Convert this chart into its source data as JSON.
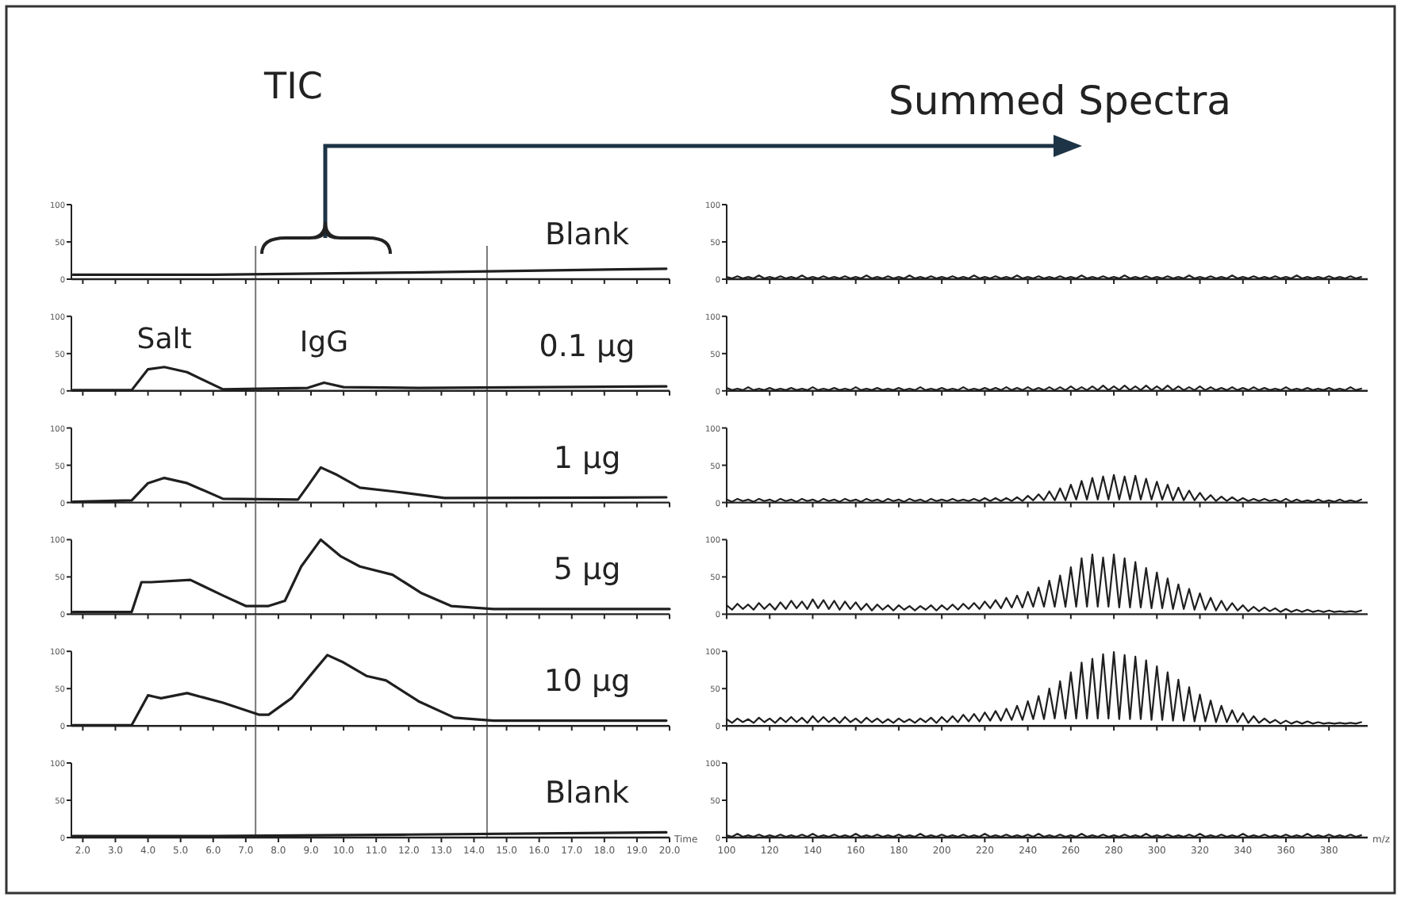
{
  "chart_data": [
    {
      "type": "line",
      "title": "Blank",
      "annotations": [
        "TIC"
      ],
      "color": "#1f1f1f",
      "x": [
        1.7,
        6,
        12,
        19.9
      ],
      "values": [
        6,
        6,
        9,
        14
      ],
      "xlim": [
        1.65,
        20
      ],
      "xticks": [
        {
          "value": 2,
          "label": null
        },
        {
          "value": 3,
          "label": null
        },
        {
          "value": 4,
          "label": null
        },
        {
          "value": 5,
          "label": null
        },
        {
          "value": 6,
          "label": null
        },
        {
          "value": 7,
          "label": null
        },
        {
          "value": 8,
          "label": null
        },
        {
          "value": 9,
          "label": null
        },
        {
          "value": 10,
          "label": null
        },
        {
          "value": 11,
          "label": null
        },
        {
          "value": 12,
          "label": null
        },
        {
          "value": 13,
          "label": null
        },
        {
          "value": 14,
          "label": null
        },
        {
          "value": 15,
          "label": null
        },
        {
          "value": 16,
          "label": null
        },
        {
          "value": 17,
          "label": null
        },
        {
          "value": 18,
          "label": null
        },
        {
          "value": 19,
          "label": null
        },
        {
          "value": 20,
          "label": null
        }
      ],
      "ylim": [
        0,
        100
      ],
      "yticks": [
        0,
        50,
        100
      ],
      "tick_labels": "y",
      "ref_lines": [
        {
          "axis": "x",
          "value": 7.3
        },
        {
          "axis": "x",
          "value": 14.4
        }
      ]
    },
    {
      "type": "line",
      "annotations": [
        "Summed Spectra"
      ],
      "color": "#1f1f1f",
      "x": [
        100,
        102.5,
        105,
        107.5,
        110,
        112.5,
        115,
        117.5,
        120,
        122.5,
        125,
        127.5,
        130,
        132.5,
        135,
        137.5,
        140,
        142.5,
        145,
        147.5,
        150,
        152.5,
        155,
        157.5,
        160,
        162.5,
        165,
        167.5,
        170,
        172.5,
        175,
        177.5,
        180,
        182.5,
        185,
        187.5,
        190,
        192.5,
        195,
        197.5,
        200,
        202.5,
        205,
        207.5,
        210,
        212.5,
        215,
        217.5,
        220,
        222.5,
        225,
        227.5,
        230,
        232.5,
        235,
        237.5,
        240,
        242.5,
        245,
        247.5,
        250,
        252.5,
        255,
        257.5,
        260,
        262.5,
        265,
        267.5,
        270,
        272.5,
        275,
        277.5,
        280,
        282.5,
        285,
        287.5,
        290,
        292.5,
        295,
        297.5,
        300,
        302.5,
        305,
        307.5,
        310,
        312.5,
        315,
        317.5,
        320,
        322.5,
        325,
        327.5,
        330,
        332.5,
        335,
        337.5,
        340,
        342.5,
        345,
        347.5,
        350,
        352.5,
        355,
        357.5,
        360,
        362.5,
        365,
        367.5,
        370,
        372.5,
        375,
        377.5,
        380,
        382.5,
        385,
        387.5,
        390,
        392.5,
        395
      ],
      "values": [
        3,
        1,
        4,
        1,
        3,
        1,
        5,
        1,
        3,
        1,
        4,
        1,
        3,
        1,
        5,
        1,
        3,
        1,
        4,
        1,
        3,
        1,
        4,
        1,
        3,
        1,
        5,
        1,
        3,
        1,
        4,
        1,
        3,
        1,
        5,
        1,
        3,
        1,
        4,
        1,
        3,
        1,
        4,
        1,
        3,
        1,
        5,
        1,
        3,
        1,
        4,
        1,
        3,
        1,
        5,
        1,
        3,
        1,
        4,
        1,
        3,
        1,
        4,
        1,
        3,
        1,
        5,
        1,
        3,
        1,
        4,
        1,
        3,
        1,
        5,
        1,
        3,
        1,
        4,
        1,
        3,
        1,
        4,
        1,
        3,
        1,
        5,
        1,
        3,
        1,
        4,
        1,
        3,
        1,
        5,
        1,
        3,
        1,
        4,
        1,
        3,
        1,
        4,
        1,
        3,
        1,
        5,
        1,
        3,
        1,
        3,
        1,
        4,
        1,
        3,
        1,
        4,
        1,
        3
      ],
      "xlim": [
        100,
        398
      ],
      "xticks": [
        100,
        120,
        140,
        160,
        180,
        200,
        220,
        240,
        260,
        280,
        300,
        320,
        340,
        360,
        380
      ],
      "ylim": [
        0,
        100
      ],
      "yticks": [
        0,
        50,
        100
      ],
      "tick_labels": "y"
    },
    {
      "type": "line",
      "title": "0.1 μg",
      "annotations": [
        {
          "text": "Salt",
          "x": 4.5,
          "y": 32
        },
        {
          "text": "IgG",
          "x": 9.4,
          "y": 11
        }
      ],
      "color": "#1f1f1f",
      "x": [
        1.7,
        3.5,
        4.0,
        4.5,
        5.2,
        6.3,
        8.9,
        9.4,
        10.0,
        12.3,
        19.9
      ],
      "values": [
        1,
        1,
        29,
        32,
        25,
        2,
        4,
        11,
        5,
        4,
        6
      ],
      "xlim": [
        1.65,
        20
      ],
      "xticks": [
        {
          "value": 2,
          "label": null
        },
        {
          "value": 3,
          "label": null
        },
        {
          "value": 4,
          "label": null
        },
        {
          "value": 5,
          "label": null
        },
        {
          "value": 6,
          "label": null
        },
        {
          "value": 7,
          "label": null
        },
        {
          "value": 8,
          "label": null
        },
        {
          "value": 9,
          "label": null
        },
        {
          "value": 10,
          "label": null
        },
        {
          "value": 11,
          "label": null
        },
        {
          "value": 12,
          "label": null
        },
        {
          "value": 13,
          "label": null
        },
        {
          "value": 14,
          "label": null
        },
        {
          "value": 15,
          "label": null
        },
        {
          "value": 16,
          "label": null
        },
        {
          "value": 17,
          "label": null
        },
        {
          "value": 18,
          "label": null
        },
        {
          "value": 19,
          "label": null
        },
        {
          "value": 20,
          "label": null
        }
      ],
      "ylim": [
        0,
        100
      ],
      "yticks": [
        0,
        50,
        100
      ],
      "tick_labels": "y",
      "ref_lines": [
        {
          "axis": "x",
          "value": 7.3
        },
        {
          "axis": "x",
          "value": 14.4
        }
      ]
    },
    {
      "type": "line",
      "color": "#1f1f1f",
      "x": [
        100,
        102.5,
        105,
        107.5,
        110,
        112.5,
        115,
        117.5,
        120,
        122.5,
        125,
        127.5,
        130,
        132.5,
        135,
        137.5,
        140,
        142.5,
        145,
        147.5,
        150,
        152.5,
        155,
        157.5,
        160,
        162.5,
        165,
        167.5,
        170,
        172.5,
        175,
        177.5,
        180,
        182.5,
        185,
        187.5,
        190,
        192.5,
        195,
        197.5,
        200,
        202.5,
        205,
        207.5,
        210,
        212.5,
        215,
        217.5,
        220,
        222.5,
        225,
        227.5,
        230,
        232.5,
        235,
        237.5,
        240,
        242.5,
        245,
        247.5,
        250,
        252.5,
        255,
        257.5,
        260,
        262.5,
        265,
        267.5,
        270,
        272.5,
        275,
        277.5,
        280,
        282.5,
        285,
        287.5,
        290,
        292.5,
        295,
        297.5,
        300,
        302.5,
        305,
        307.5,
        310,
        312.5,
        315,
        317.5,
        320,
        322.5,
        325,
        327.5,
        330,
        332.5,
        335,
        337.5,
        340,
        342.5,
        345,
        347.5,
        350,
        352.5,
        355,
        357.5,
        360,
        362.5,
        365,
        367.5,
        370,
        372.5,
        375,
        377.5,
        380,
        382.5,
        385,
        387.5,
        390,
        392.5,
        395
      ],
      "values": [
        4,
        1,
        3,
        1,
        5,
        1,
        3,
        1,
        4,
        1,
        3,
        1,
        4,
        1,
        3,
        1,
        5,
        1,
        3,
        1,
        4,
        1,
        3,
        1,
        5,
        1,
        3,
        1,
        4,
        1,
        3,
        1,
        4,
        1,
        3,
        1,
        5,
        1,
        3,
        1,
        4,
        1,
        3,
        1,
        5,
        1,
        3,
        1,
        4,
        1,
        4,
        1,
        5,
        1,
        4,
        1,
        5,
        1,
        4,
        1,
        5,
        1,
        5,
        1,
        6,
        1,
        5,
        1,
        6,
        1,
        7,
        1,
        6,
        1,
        7,
        1,
        6,
        1,
        7,
        1,
        6,
        1,
        7,
        1,
        6,
        1,
        5,
        1,
        6,
        1,
        5,
        1,
        4,
        1,
        5,
        1,
        4,
        1,
        5,
        1,
        4,
        1,
        3,
        1,
        5,
        1,
        3,
        1,
        4,
        1,
        3,
        1,
        4,
        1,
        3,
        1,
        5,
        1,
        3
      ],
      "xlim": [
        100,
        398
      ],
      "xticks": [
        100,
        120,
        140,
        160,
        180,
        200,
        220,
        240,
        260,
        280,
        300,
        320,
        340,
        360,
        380
      ],
      "ylim": [
        0,
        100
      ],
      "yticks": [
        0,
        50,
        100
      ],
      "tick_labels": "y"
    },
    {
      "type": "line",
      "title": "1 μg",
      "color": "#1f1f1f",
      "x": [
        1.7,
        3.5,
        4.0,
        4.5,
        5.2,
        6.3,
        8.6,
        8.9,
        9.3,
        9.8,
        10.5,
        11.5,
        13.1,
        19.9
      ],
      "values": [
        1,
        3,
        26,
        33,
        26,
        5,
        4,
        22,
        47,
        37,
        20,
        15,
        6,
        7
      ],
      "xlim": [
        1.65,
        20
      ],
      "xticks": [
        {
          "value": 2,
          "label": null
        },
        {
          "value": 3,
          "label": null
        },
        {
          "value": 4,
          "label": null
        },
        {
          "value": 5,
          "label": null
        },
        {
          "value": 6,
          "label": null
        },
        {
          "value": 7,
          "label": null
        },
        {
          "value": 8,
          "label": null
        },
        {
          "value": 9,
          "label": null
        },
        {
          "value": 10,
          "label": null
        },
        {
          "value": 11,
          "label": null
        },
        {
          "value": 12,
          "label": null
        },
        {
          "value": 13,
          "label": null
        },
        {
          "value": 14,
          "label": null
        },
        {
          "value": 15,
          "label": null
        },
        {
          "value": 16,
          "label": null
        },
        {
          "value": 17,
          "label": null
        },
        {
          "value": 18,
          "label": null
        },
        {
          "value": 19,
          "label": null
        },
        {
          "value": 20,
          "label": null
        }
      ],
      "ylim": [
        0,
        100
      ],
      "yticks": [
        0,
        50,
        100
      ],
      "tick_labels": "y",
      "ref_lines": [
        {
          "axis": "x",
          "value": 7.3
        },
        {
          "axis": "x",
          "value": 14.4
        }
      ]
    },
    {
      "type": "line",
      "color": "#1f1f1f",
      "x": [
        100,
        102.5,
        105,
        107.5,
        110,
        112.5,
        115,
        117.5,
        120,
        122.5,
        125,
        127.5,
        130,
        132.5,
        135,
        137.5,
        140,
        142.5,
        145,
        147.5,
        150,
        152.5,
        155,
        157.5,
        160,
        162.5,
        165,
        167.5,
        170,
        172.5,
        175,
        177.5,
        180,
        182.5,
        185,
        187.5,
        190,
        192.5,
        195,
        197.5,
        200,
        202.5,
        205,
        207.5,
        210,
        212.5,
        215,
        217.5,
        220,
        222.5,
        225,
        227.5,
        230,
        232.5,
        235,
        237.5,
        240,
        242.5,
        245,
        247.5,
        250,
        252.5,
        255,
        257.5,
        260,
        262.5,
        265,
        267.5,
        270,
        272.5,
        275,
        277.5,
        280,
        282.5,
        285,
        287.5,
        290,
        292.5,
        295,
        297.5,
        300,
        302.5,
        305,
        307.5,
        310,
        312.5,
        315,
        317.5,
        320,
        322.5,
        325,
        327.5,
        330,
        332.5,
        335,
        337.5,
        340,
        342.5,
        345,
        347.5,
        350,
        352.5,
        355,
        357.5,
        360,
        362.5,
        365,
        367.5,
        370,
        372.5,
        375,
        377.5,
        380,
        382.5,
        385,
        387.5,
        390,
        392.5,
        395
      ],
      "values": [
        4,
        1,
        5,
        2,
        4,
        1,
        5,
        2,
        4,
        1,
        5,
        2,
        4,
        1,
        5,
        2,
        4,
        1,
        5,
        2,
        4,
        1,
        5,
        2,
        4,
        1,
        5,
        2,
        4,
        1,
        5,
        2,
        4,
        1,
        5,
        2,
        4,
        1,
        5,
        2,
        4,
        2,
        5,
        2,
        4,
        2,
        5,
        2,
        6,
        2,
        6,
        2,
        6,
        2,
        7,
        2,
        9,
        3,
        11,
        3,
        15,
        3,
        19,
        3,
        24,
        4,
        29,
        4,
        33,
        4,
        35,
        4,
        37,
        4,
        35,
        4,
        36,
        4,
        32,
        4,
        28,
        4,
        24,
        3,
        20,
        3,
        16,
        3,
        13,
        3,
        10,
        2,
        8,
        2,
        7,
        2,
        6,
        2,
        5,
        2,
        5,
        2,
        4,
        1,
        5,
        1,
        4,
        1,
        3,
        1,
        4,
        1,
        3,
        1,
        4,
        1,
        3,
        1,
        4
      ],
      "xlim": [
        100,
        398
      ],
      "xticks": [
        100,
        120,
        140,
        160,
        180,
        200,
        220,
        240,
        260,
        280,
        300,
        320,
        340,
        360,
        380
      ],
      "ylim": [
        0,
        100
      ],
      "yticks": [
        0,
        50,
        100
      ],
      "tick_labels": "y"
    },
    {
      "type": "line",
      "title": "5 μg",
      "color": "#1f1f1f",
      "x": [
        1.7,
        3.5,
        3.8,
        4.1,
        5.3,
        6.3,
        7.0,
        7.7,
        8.2,
        8.7,
        9.3,
        9.9,
        10.5,
        11.5,
        12.4,
        13.3,
        14.6,
        20.0
      ],
      "values": [
        3,
        3,
        43,
        43,
        46,
        25,
        11,
        11,
        18,
        64,
        100,
        78,
        64,
        53,
        28,
        11,
        7,
        7
      ],
      "xlim": [
        1.65,
        20
      ],
      "xticks": [
        {
          "value": 2,
          "label": null
        },
        {
          "value": 3,
          "label": null
        },
        {
          "value": 4,
          "label": null
        },
        {
          "value": 5,
          "label": null
        },
        {
          "value": 6,
          "label": null
        },
        {
          "value": 7,
          "label": null
        },
        {
          "value": 8,
          "label": null
        },
        {
          "value": 9,
          "label": null
        },
        {
          "value": 10,
          "label": null
        },
        {
          "value": 11,
          "label": null
        },
        {
          "value": 12,
          "label": null
        },
        {
          "value": 13,
          "label": null
        },
        {
          "value": 14,
          "label": null
        },
        {
          "value": 15,
          "label": null
        },
        {
          "value": 16,
          "label": null
        },
        {
          "value": 17,
          "label": null
        },
        {
          "value": 18,
          "label": null
        },
        {
          "value": 19,
          "label": null
        },
        {
          "value": 20,
          "label": null
        }
      ],
      "ylim": [
        0,
        100
      ],
      "yticks": [
        0,
        50,
        100
      ],
      "tick_labels": "y",
      "ref_lines": [
        {
          "axis": "x",
          "value": 7.3
        },
        {
          "axis": "x",
          "value": 14.4
        }
      ]
    },
    {
      "type": "line",
      "color": "#1f1f1f",
      "x": [
        100,
        102.5,
        105,
        107.5,
        110,
        112.5,
        115,
        117.5,
        120,
        122.5,
        125,
        127.5,
        130,
        132.5,
        135,
        137.5,
        140,
        142.5,
        145,
        147.5,
        150,
        152.5,
        155,
        157.5,
        160,
        162.5,
        165,
        167.5,
        170,
        172.5,
        175,
        177.5,
        180,
        182.5,
        185,
        187.5,
        190,
        192.5,
        195,
        197.5,
        200,
        202.5,
        205,
        207.5,
        210,
        212.5,
        215,
        217.5,
        220,
        222.5,
        225,
        227.5,
        230,
        232.5,
        235,
        237.5,
        240,
        242.5,
        245,
        247.5,
        250,
        252.5,
        255,
        257.5,
        260,
        262.5,
        265,
        267.5,
        270,
        272.5,
        275,
        277.5,
        280,
        282.5,
        285,
        287.5,
        290,
        292.5,
        295,
        297.5,
        300,
        302.5,
        305,
        307.5,
        310,
        312.5,
        315,
        317.5,
        320,
        322.5,
        325,
        327.5,
        330,
        332.5,
        335,
        337.5,
        340,
        342.5,
        345,
        347.5,
        350,
        352.5,
        355,
        357.5,
        360,
        362.5,
        365,
        367.5,
        370,
        372.5,
        375,
        377.5,
        380,
        382.5,
        385,
        387.5,
        390,
        392.5,
        395
      ],
      "values": [
        12,
        6,
        14,
        7,
        13,
        6,
        15,
        7,
        14,
        6,
        16,
        7,
        18,
        8,
        17,
        7,
        20,
        8,
        19,
        7,
        18,
        6,
        17,
        7,
        16,
        6,
        14,
        5,
        13,
        6,
        12,
        5,
        12,
        6,
        11,
        5,
        11,
        6,
        12,
        5,
        12,
        6,
        13,
        6,
        14,
        7,
        15,
        7,
        17,
        8,
        19,
        8,
        22,
        9,
        25,
        9,
        30,
        10,
        36,
        10,
        45,
        10,
        52,
        10,
        63,
        10,
        75,
        10,
        80,
        10,
        76,
        10,
        80,
        9,
        75,
        9,
        70,
        9,
        62,
        8,
        56,
        8,
        48,
        7,
        40,
        7,
        34,
        6,
        28,
        6,
        22,
        5,
        18,
        5,
        15,
        5,
        12,
        4,
        10,
        4,
        9,
        4,
        8,
        3,
        7,
        3,
        6,
        3,
        6,
        3,
        5,
        3,
        5,
        3,
        4,
        3,
        4,
        3,
        5
      ],
      "xlim": [
        100,
        398
      ],
      "xticks": [
        100,
        120,
        140,
        160,
        180,
        200,
        220,
        240,
        260,
        280,
        300,
        320,
        340,
        360,
        380
      ],
      "ylim": [
        0,
        100
      ],
      "yticks": [
        0,
        50,
        100
      ],
      "tick_labels": "y"
    },
    {
      "type": "line",
      "title": "10 μg",
      "color": "#1f1f1f",
      "x": [
        1.7,
        3.5,
        4.0,
        4.2,
        4.4,
        5.2,
        6.3,
        7.4,
        7.7,
        8.4,
        9.1,
        9.5,
        10.0,
        10.7,
        11.3,
        12.3,
        13.4,
        14.6,
        19.9
      ],
      "values": [
        1,
        1,
        41,
        39,
        37,
        44,
        31,
        15,
        15,
        37,
        74,
        95,
        85,
        67,
        61,
        33,
        11,
        7,
        7
      ],
      "xlim": [
        1.65,
        20
      ],
      "xticks": [
        {
          "value": 2,
          "label": null
        },
        {
          "value": 3,
          "label": null
        },
        {
          "value": 4,
          "label": null
        },
        {
          "value": 5,
          "label": null
        },
        {
          "value": 6,
          "label": null
        },
        {
          "value": 7,
          "label": null
        },
        {
          "value": 8,
          "label": null
        },
        {
          "value": 9,
          "label": null
        },
        {
          "value": 10,
          "label": null
        },
        {
          "value": 11,
          "label": null
        },
        {
          "value": 12,
          "label": null
        },
        {
          "value": 13,
          "label": null
        },
        {
          "value": 14,
          "label": null
        },
        {
          "value": 15,
          "label": null
        },
        {
          "value": 16,
          "label": null
        },
        {
          "value": 17,
          "label": null
        },
        {
          "value": 18,
          "label": null
        },
        {
          "value": 19,
          "label": null
        },
        {
          "value": 20,
          "label": null
        }
      ],
      "ylim": [
        0,
        100
      ],
      "yticks": [
        0,
        50,
        100
      ],
      "tick_labels": "y",
      "ref_lines": [
        {
          "axis": "x",
          "value": 7.3
        },
        {
          "axis": "x",
          "value": 14.4
        }
      ]
    },
    {
      "type": "line",
      "color": "#1f1f1f",
      "x": [
        100,
        102.5,
        105,
        107.5,
        110,
        112.5,
        115,
        117.5,
        120,
        122.5,
        125,
        127.5,
        130,
        132.5,
        135,
        137.5,
        140,
        142.5,
        145,
        147.5,
        150,
        152.5,
        155,
        157.5,
        160,
        162.5,
        165,
        167.5,
        170,
        172.5,
        175,
        177.5,
        180,
        182.5,
        185,
        187.5,
        190,
        192.5,
        195,
        197.5,
        200,
        202.5,
        205,
        207.5,
        210,
        212.5,
        215,
        217.5,
        220,
        222.5,
        225,
        227.5,
        230,
        232.5,
        235,
        237.5,
        240,
        242.5,
        245,
        247.5,
        250,
        252.5,
        255,
        257.5,
        260,
        262.5,
        265,
        267.5,
        270,
        272.5,
        275,
        277.5,
        280,
        282.5,
        285,
        287.5,
        290,
        292.5,
        295,
        297.5,
        300,
        302.5,
        305,
        307.5,
        310,
        312.5,
        315,
        317.5,
        320,
        322.5,
        325,
        327.5,
        330,
        332.5,
        335,
        337.5,
        340,
        342.5,
        345,
        347.5,
        350,
        352.5,
        355,
        357.5,
        360,
        362.5,
        365,
        367.5,
        370,
        372.5,
        375,
        377.5,
        380,
        382.5,
        385,
        387.5,
        390,
        392.5,
        395
      ],
      "values": [
        9,
        4,
        10,
        5,
        9,
        4,
        11,
        5,
        10,
        4,
        11,
        5,
        12,
        5,
        11,
        4,
        13,
        5,
        12,
        5,
        11,
        4,
        12,
        5,
        10,
        4,
        11,
        5,
        10,
        4,
        9,
        4,
        10,
        5,
        9,
        4,
        10,
        5,
        11,
        4,
        12,
        5,
        13,
        5,
        15,
        6,
        16,
        6,
        18,
        7,
        20,
        7,
        23,
        8,
        27,
        8,
        33,
        9,
        40,
        9,
        50,
        10,
        60,
        10,
        72,
        10,
        85,
        10,
        90,
        10,
        96,
        10,
        99,
        9,
        95,
        9,
        93,
        9,
        88,
        8,
        80,
        8,
        72,
        7,
        62,
        7,
        52,
        6,
        42,
        6,
        34,
        5,
        27,
        5,
        21,
        5,
        17,
        4,
        13,
        4,
        10,
        4,
        8,
        3,
        7,
        3,
        6,
        3,
        6,
        3,
        5,
        3,
        4,
        3,
        4,
        3,
        4,
        3,
        5
      ],
      "xlim": [
        100,
        398
      ],
      "xticks": [
        100,
        120,
        140,
        160,
        180,
        200,
        220,
        240,
        260,
        280,
        300,
        320,
        340,
        360,
        380
      ],
      "ylim": [
        0,
        100
      ],
      "yticks": [
        0,
        50,
        100
      ],
      "tick_labels": "y"
    },
    {
      "type": "line",
      "title": "Blank",
      "xlabel": "Time",
      "color": "#1f1f1f",
      "x": [
        1.7,
        6,
        12,
        19.9
      ],
      "values": [
        2,
        2,
        4,
        7
      ],
      "xlim": [
        1.65,
        20
      ],
      "xticks": [
        {
          "value": 2,
          "label": "2.0"
        },
        {
          "value": 3,
          "label": "3.0"
        },
        {
          "value": 4,
          "label": "4.0"
        },
        {
          "value": 5,
          "label": "5.0"
        },
        {
          "value": 6,
          "label": "6.0"
        },
        {
          "value": 7,
          "label": "7.0"
        },
        {
          "value": 8,
          "label": "8.0"
        },
        {
          "value": 9,
          "label": "9.0"
        },
        {
          "value": 10,
          "label": "10.0"
        },
        {
          "value": 11,
          "label": "11.0"
        },
        {
          "value": 12,
          "label": "12.0"
        },
        {
          "value": 13,
          "label": "13.0"
        },
        {
          "value": 14,
          "label": "14.0"
        },
        {
          "value": 15,
          "label": "15.0"
        },
        {
          "value": 16,
          "label": "16.0"
        },
        {
          "value": 17,
          "label": "17.0"
        },
        {
          "value": 18,
          "label": "18.0"
        },
        {
          "value": 19,
          "label": "19.0"
        },
        {
          "value": 20,
          "label": "20.0"
        }
      ],
      "ylim": [
        0,
        100
      ],
      "yticks": [
        0,
        50,
        100
      ],
      "ref_lines": [
        {
          "axis": "x",
          "value": 7.3
        },
        {
          "axis": "x",
          "value": 14.4
        }
      ]
    },
    {
      "type": "line",
      "xlabel": "m/z",
      "color": "#1f1f1f",
      "x": [
        100,
        102.5,
        105,
        107.5,
        110,
        112.5,
        115,
        117.5,
        120,
        122.5,
        125,
        127.5,
        130,
        132.5,
        135,
        137.5,
        140,
        142.5,
        145,
        147.5,
        150,
        152.5,
        155,
        157.5,
        160,
        162.5,
        165,
        167.5,
        170,
        172.5,
        175,
        177.5,
        180,
        182.5,
        185,
        187.5,
        190,
        192.5,
        195,
        197.5,
        200,
        202.5,
        205,
        207.5,
        210,
        212.5,
        215,
        217.5,
        220,
        222.5,
        225,
        227.5,
        230,
        232.5,
        235,
        237.5,
        240,
        242.5,
        245,
        247.5,
        250,
        252.5,
        255,
        257.5,
        260,
        262.5,
        265,
        267.5,
        270,
        272.5,
        275,
        277.5,
        280,
        282.5,
        285,
        287.5,
        290,
        292.5,
        295,
        297.5,
        300,
        302.5,
        305,
        307.5,
        310,
        312.5,
        315,
        317.5,
        320,
        322.5,
        325,
        327.5,
        330,
        332.5,
        335,
        337.5,
        340,
        342.5,
        345,
        347.5,
        350,
        352.5,
        355,
        357.5,
        360,
        362.5,
        365,
        367.5,
        370,
        372.5,
        375,
        377.5,
        380,
        382.5,
        385,
        387.5,
        390,
        392.5,
        395
      ],
      "values": [
        3,
        1,
        5,
        1,
        3,
        1,
        4,
        1,
        3,
        1,
        4,
        1,
        3,
        1,
        4,
        1,
        5,
        1,
        3,
        1,
        4,
        1,
        3,
        1,
        5,
        1,
        3,
        1,
        4,
        1,
        3,
        1,
        4,
        1,
        3,
        1,
        5,
        1,
        3,
        1,
        4,
        1,
        3,
        1,
        4,
        1,
        3,
        1,
        5,
        1,
        3,
        1,
        4,
        1,
        3,
        1,
        4,
        1,
        5,
        1,
        3,
        1,
        4,
        1,
        3,
        1,
        5,
        1,
        3,
        1,
        4,
        1,
        3,
        1,
        4,
        1,
        3,
        1,
        5,
        1,
        3,
        1,
        4,
        1,
        3,
        1,
        4,
        1,
        5,
        1,
        3,
        1,
        4,
        1,
        3,
        1,
        5,
        1,
        3,
        1,
        4,
        1,
        3,
        1,
        4,
        1,
        3,
        1,
        5,
        1,
        3,
        1,
        4,
        1,
        3,
        1,
        4,
        1,
        3
      ],
      "xlim": [
        100,
        398
      ],
      "xticks": [
        100,
        120,
        140,
        160,
        180,
        200,
        220,
        240,
        260,
        280,
        300,
        320,
        340,
        360,
        380
      ],
      "ylim": [
        0,
        100
      ],
      "yticks": [
        0,
        50,
        100
      ]
    }
  ]
}
